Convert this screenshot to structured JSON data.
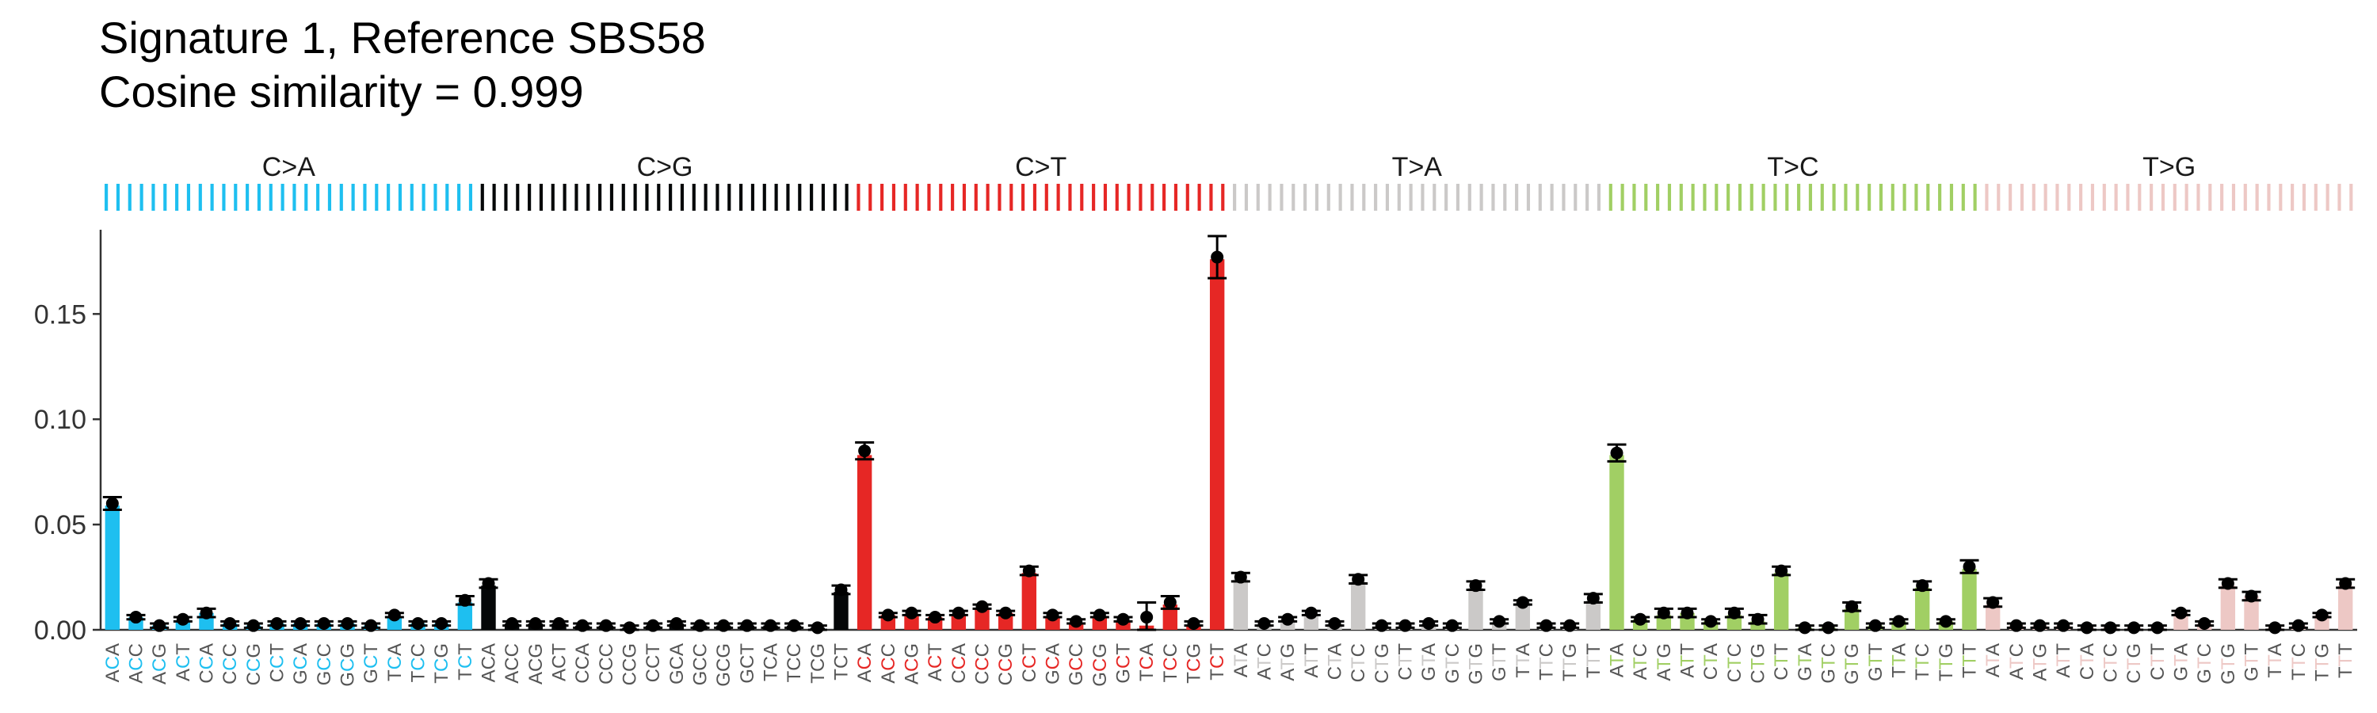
{
  "title_lines": [
    "Signature 1, Reference SBS58",
    "Cosine similarity = 0.999"
  ],
  "chart_data": {
    "type": "bar",
    "title": "Signature 1, Reference SBS58",
    "subtitle": "Cosine similarity = 0.999",
    "ylim": [
      0,
      0.19
    ],
    "yticks": [
      0.0,
      0.05,
      0.1,
      0.15
    ],
    "ytick_labels": [
      "0.00",
      "0.05",
      "0.10",
      "0.15"
    ],
    "grid": false,
    "groups": [
      {
        "name": "C>A",
        "color": "#1EBFF0",
        "ref": "C",
        "contexts": [
          "ACA",
          "ACC",
          "ACG",
          "ACT",
          "CCA",
          "CCC",
          "CCG",
          "CCT",
          "GCA",
          "GCC",
          "GCG",
          "GCT",
          "TCA",
          "TCC",
          "TCG",
          "TCT"
        ],
        "values": [
          0.059,
          0.006,
          0.002,
          0.004,
          0.008,
          0.003,
          0.002,
          0.003,
          0.003,
          0.003,
          0.003,
          0.002,
          0.006,
          0.003,
          0.003,
          0.013
        ],
        "point": [
          0.06,
          0.006,
          0.002,
          0.005,
          0.008,
          0.003,
          0.002,
          0.003,
          0.003,
          0.003,
          0.003,
          0.002,
          0.007,
          0.003,
          0.003,
          0.014
        ],
        "err": [
          0.003,
          0.001,
          0.001,
          0.001,
          0.002,
          0.001,
          0.001,
          0.001,
          0.001,
          0.001,
          0.001,
          0.001,
          0.001,
          0.001,
          0.001,
          0.002
        ]
      },
      {
        "name": "C>G",
        "color": "#050708",
        "ref": "C",
        "contexts": [
          "ACA",
          "ACC",
          "ACG",
          "ACT",
          "CCA",
          "CCC",
          "CCG",
          "CCT",
          "GCA",
          "GCC",
          "GCG",
          "GCT",
          "TCA",
          "TCC",
          "TCG",
          "TCT"
        ],
        "values": [
          0.021,
          0.003,
          0.003,
          0.003,
          0.002,
          0.002,
          0.001,
          0.002,
          0.003,
          0.002,
          0.002,
          0.002,
          0.002,
          0.002,
          0.001,
          0.018
        ],
        "point": [
          0.022,
          0.003,
          0.003,
          0.003,
          0.002,
          0.002,
          0.001,
          0.002,
          0.003,
          0.002,
          0.002,
          0.002,
          0.002,
          0.002,
          0.001,
          0.019
        ],
        "err": [
          0.002,
          0.001,
          0.001,
          0.001,
          0.001,
          0.001,
          0.001,
          0.001,
          0.001,
          0.001,
          0.001,
          0.001,
          0.001,
          0.001,
          0.001,
          0.002
        ]
      },
      {
        "name": "C>T",
        "color": "#E62725",
        "ref": "C",
        "contexts": [
          "ACA",
          "ACC",
          "ACG",
          "ACT",
          "CCA",
          "CCC",
          "CCG",
          "CCT",
          "GCA",
          "GCC",
          "GCG",
          "GCT",
          "TCA",
          "TCC",
          "TCG",
          "TCT"
        ],
        "values": [
          0.083,
          0.007,
          0.007,
          0.006,
          0.007,
          0.01,
          0.008,
          0.027,
          0.006,
          0.003,
          0.006,
          0.004,
          0.002,
          0.012,
          0.002,
          0.176
        ],
        "point": [
          0.085,
          0.007,
          0.008,
          0.006,
          0.008,
          0.011,
          0.008,
          0.028,
          0.007,
          0.004,
          0.007,
          0.005,
          0.006,
          0.013,
          0.003,
          0.177
        ],
        "err": [
          0.004,
          0.001,
          0.001,
          0.001,
          0.001,
          0.001,
          0.001,
          0.002,
          0.001,
          0.001,
          0.001,
          0.001,
          0.007,
          0.003,
          0.001,
          0.01
        ]
      },
      {
        "name": "T>A",
        "color": "#CBC9C8",
        "ref": "T",
        "contexts": [
          "ATA",
          "ATC",
          "ATG",
          "ATT",
          "CTA",
          "CTC",
          "CTG",
          "CTT",
          "GTA",
          "GTC",
          "GTG",
          "GTT",
          "TTA",
          "TTC",
          "TTG",
          "TTT"
        ],
        "values": [
          0.024,
          0.002,
          0.005,
          0.007,
          0.003,
          0.023,
          0.002,
          0.002,
          0.003,
          0.002,
          0.02,
          0.003,
          0.013,
          0.002,
          0.002,
          0.014
        ],
        "point": [
          0.025,
          0.003,
          0.005,
          0.008,
          0.003,
          0.024,
          0.002,
          0.002,
          0.003,
          0.002,
          0.021,
          0.004,
          0.013,
          0.002,
          0.002,
          0.015
        ],
        "err": [
          0.002,
          0.001,
          0.001,
          0.001,
          0.001,
          0.002,
          0.001,
          0.001,
          0.001,
          0.001,
          0.002,
          0.001,
          0.001,
          0.001,
          0.001,
          0.002
        ]
      },
      {
        "name": "T>C",
        "color": "#A1CF64",
        "ref": "T",
        "contexts": [
          "ATA",
          "ATC",
          "ATG",
          "ATT",
          "CTA",
          "CTC",
          "CTG",
          "CTT",
          "GTA",
          "GTC",
          "GTG",
          "GTT",
          "TTA",
          "TTC",
          "TTG",
          "TTT"
        ],
        "values": [
          0.083,
          0.005,
          0.007,
          0.008,
          0.004,
          0.007,
          0.004,
          0.027,
          0.001,
          0.001,
          0.01,
          0.002,
          0.004,
          0.02,
          0.004,
          0.029
        ],
        "point": [
          0.084,
          0.005,
          0.008,
          0.008,
          0.004,
          0.008,
          0.005,
          0.028,
          0.001,
          0.001,
          0.011,
          0.002,
          0.004,
          0.021,
          0.004,
          0.03
        ],
        "err": [
          0.004,
          0.001,
          0.002,
          0.002,
          0.001,
          0.002,
          0.002,
          0.002,
          0.001,
          0.001,
          0.002,
          0.001,
          0.001,
          0.002,
          0.001,
          0.003
        ]
      },
      {
        "name": "T>G",
        "color": "#EDC8C5",
        "ref": "T",
        "contexts": [
          "ATA",
          "ATC",
          "ATG",
          "ATT",
          "CTA",
          "CTC",
          "CTG",
          "CTT",
          "GTA",
          "GTC",
          "GTG",
          "GTT",
          "TTA",
          "TTC",
          "TTG",
          "TTT"
        ],
        "values": [
          0.012,
          0.002,
          0.002,
          0.002,
          0.001,
          0.001,
          0.001,
          0.001,
          0.008,
          0.003,
          0.021,
          0.016,
          0.001,
          0.002,
          0.007,
          0.021
        ],
        "point": [
          0.013,
          0.002,
          0.002,
          0.002,
          0.001,
          0.001,
          0.001,
          0.001,
          0.008,
          0.003,
          0.022,
          0.016,
          0.001,
          0.002,
          0.007,
          0.022
        ],
        "err": [
          0.002,
          0.001,
          0.001,
          0.001,
          0.001,
          0.001,
          0.001,
          0.001,
          0.001,
          0.001,
          0.002,
          0.002,
          0.001,
          0.001,
          0.001,
          0.002
        ]
      }
    ]
  }
}
